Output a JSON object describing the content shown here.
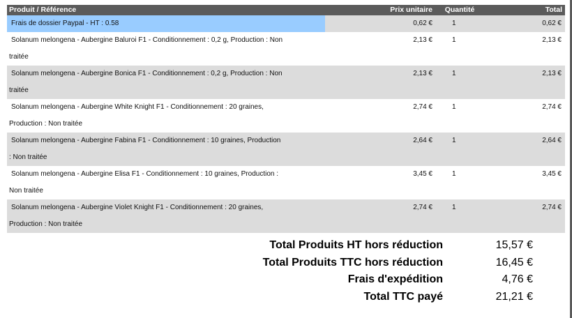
{
  "colors": {
    "header_bg": "#5b5b5b",
    "header_text": "#ffffff",
    "row_shade": "#dcdcdc",
    "fee_highlight": "#99ccff"
  },
  "table": {
    "headers": {
      "product": "Produit / Référence",
      "price": "Prix unitaire",
      "quantity": "Quantité",
      "total": "Total"
    },
    "rows": [
      {
        "line1": "Frais de dossier Paypal - HT : 0.58",
        "line2": "",
        "price": "0,62 €",
        "quantity": "1",
        "total": "0,62 €"
      },
      {
        "line1": "Solanum melongena - Aubergine Baluroi F1 - Conditionnement : 0,2 g, Production : Non",
        "line2": "traitée",
        "price": "2,13 €",
        "quantity": "1",
        "total": "2,13 €"
      },
      {
        "line1": "Solanum melongena - Aubergine Bonica F1 - Conditionnement : 0,2 g, Production : Non",
        "line2": "traitée",
        "price": "2,13 €",
        "quantity": "1",
        "total": "2,13 €"
      },
      {
        "line1": "Solanum melongena - Aubergine White Knight F1 - Conditionnement : 20 graines,",
        "line2": "Production : Non traitée",
        "price": "2,74 €",
        "quantity": "1",
        "total": "2,74 €"
      },
      {
        "line1": "Solanum melongena - Aubergine Fabina F1 - Conditionnement : 10 graines, Production",
        "line2": ": Non traitée",
        "price": "2,64 €",
        "quantity": "1",
        "total": "2,64 €"
      },
      {
        "line1": "Solanum melongena - Aubergine Elisa F1 - Conditionnement : 10 graines, Production :",
        "line2": "Non traitée",
        "price": "3,45 €",
        "quantity": "1",
        "total": "3,45 €"
      },
      {
        "line1": "Solanum melongena - Aubergine Violet Knight F1 - Conditionnement : 20 graines,",
        "line2": "Production : Non traitée",
        "price": "2,74 €",
        "quantity": "1",
        "total": "2,74 €"
      }
    ]
  },
  "totals": {
    "ht_label": "Total Produits HT hors réduction",
    "ht_value": "15,57 €",
    "ttc_label": "Total Produits TTC hors réduction",
    "ttc_value": "16,45 €",
    "shipping_label": "Frais d'expédition",
    "shipping_value": "4,76 €",
    "paid_label": "Total TTC payé",
    "paid_value": "21,21 €"
  }
}
